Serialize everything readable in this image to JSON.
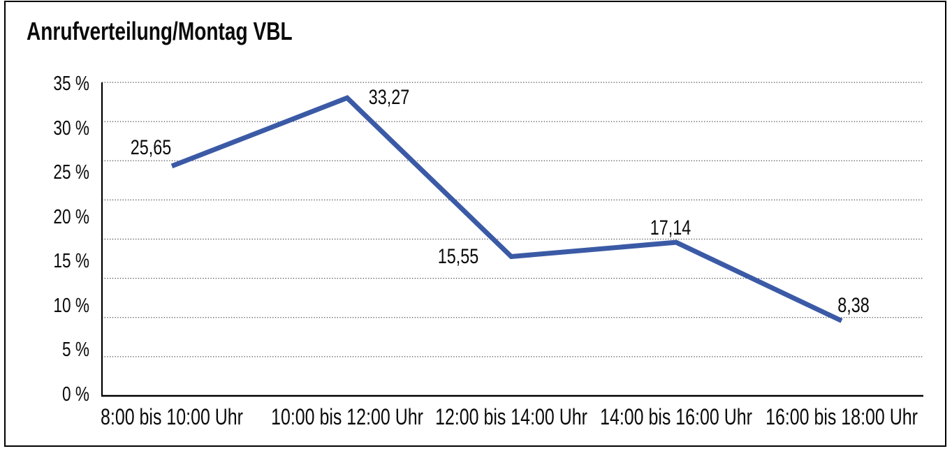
{
  "window": {
    "background": "#ffffff",
    "frame_border_color": "#000000"
  },
  "chart_data": {
    "type": "line",
    "title": "Anrufverteilung/Montag VBL",
    "categories": [
      "8:00 bis 10:00 Uhr",
      "10:00 bis 12:00 Uhr",
      "12:00 bis 14:00 Uhr",
      "14:00 bis 16:00 Uhr",
      "16:00 bis 18:00 Uhr"
    ],
    "values": [
      25.65,
      33.27,
      15.55,
      17.14,
      8.38
    ],
    "value_labels": [
      "25,65",
      "33,27",
      "15,55",
      "17,14",
      "8,38"
    ],
    "y_ticks": [
      "35 %",
      "30 %",
      "25 %",
      "20 %",
      "15 %",
      "10 %",
      "5 %",
      "0 %"
    ],
    "ylim": [
      0,
      35
    ],
    "xlabel": "",
    "ylabel": "",
    "grid": "horizontal-dotted",
    "legend": "none",
    "line_color": "#3B5AA6",
    "grid_color": "#4a4a4a",
    "axis_color": "#000000",
    "text_color": "#0a0a0a"
  }
}
